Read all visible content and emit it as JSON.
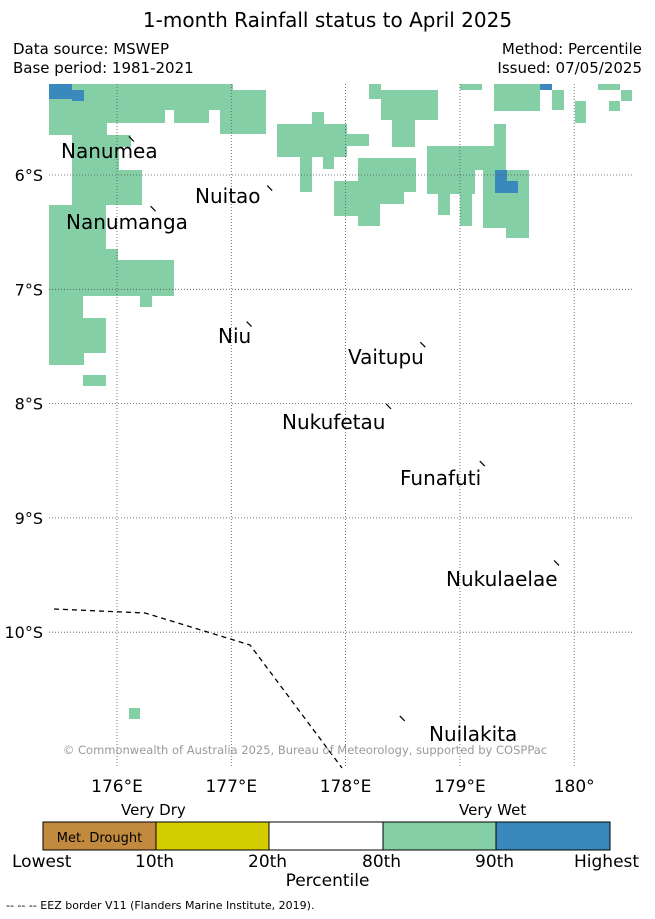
{
  "title": "1-month Rainfall status to April 2025",
  "header": {
    "data_source": "Data source: MSWEP",
    "base_period": "Base period: 1981-2021",
    "method": "Method: Percentile",
    "issued": "Issued: 07/05/2025"
  },
  "map": {
    "lat_range": [
      -11.2,
      -5.2
    ],
    "lon_range": [
      175.4,
      180.5
    ],
    "lat_ticks": [
      "6°S",
      "7°S",
      "8°S",
      "9°S",
      "10°S"
    ],
    "lon_ticks": [
      "176°E",
      "177°E",
      "178°E",
      "179°E",
      "180°"
    ],
    "grid": true,
    "copyright": "© Commonwealth of Australia 2025, Bureau of Meteorology, supported by COSPPac",
    "islands": [
      {
        "name": "Nanumea",
        "lon": 176.13,
        "lat": -5.68
      },
      {
        "name": "Nuitao",
        "lon": 177.34,
        "lat": -6.11
      },
      {
        "name": "Nanumanga",
        "lon": 176.32,
        "lat": -6.29
      },
      {
        "name": "Niu",
        "lon": 177.16,
        "lat": -7.3
      },
      {
        "name": "Vaitupu",
        "lon": 178.68,
        "lat": -7.48
      },
      {
        "name": "Nukufetau",
        "lon": 178.38,
        "lat": -8.02
      },
      {
        "name": "Funafuti",
        "lon": 179.2,
        "lat": -8.52
      },
      {
        "name": "Nukulaelae",
        "lon": 179.85,
        "lat": -9.39
      },
      {
        "name": "Nuilakita",
        "lon": 178.5,
        "lat": -10.75
      }
    ],
    "colors": {
      "met_drought": "#c18a3e",
      "very_dry": "#d4cd00",
      "normal": "#ffffff",
      "wet": "#85cfa6",
      "very_wet": "#3a89bc",
      "grid": "#555555"
    }
  },
  "colorbar": {
    "very_dry_label": "Very Dry",
    "very_wet_label": "Very Wet",
    "segments": [
      {
        "label": "Met. Drought",
        "color": "#c18a3e"
      },
      {
        "label": "",
        "color": "#d4cd00"
      },
      {
        "label": "",
        "color": "#ffffff"
      },
      {
        "label": "",
        "color": "#85cfa6"
      },
      {
        "label": "",
        "color": "#3a89bc"
      }
    ],
    "ticks": [
      "Lowest",
      "10th",
      "20th",
      "80th",
      "90th",
      "Highest"
    ],
    "axis_label": "Percentile"
  },
  "eez_note": "--  --  -- EEZ border V11 (Flanders Marine Institute, 2019)."
}
